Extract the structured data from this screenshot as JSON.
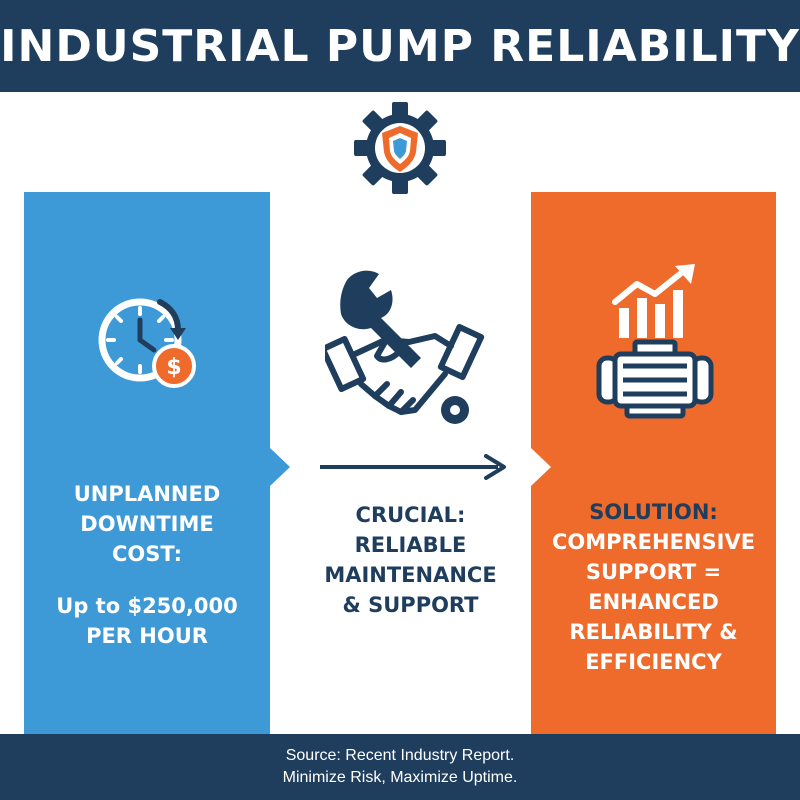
{
  "header": {
    "title": "INDUSTRIAL PUMP RELIABILITY"
  },
  "colors": {
    "navy": "#1f3d5c",
    "blue": "#3d9ad6",
    "orange": "#ee6b2c",
    "white": "#ffffff"
  },
  "icons": {
    "top": "gear-shield-icon",
    "left": "clock-dollar-icon",
    "middle": "wrench-handshake-icon",
    "right": [
      "bar-chart-up-icon",
      "pump-icon"
    ],
    "flow": "right-arrow-icon"
  },
  "left_panel": {
    "heading_lines": [
      "UNPLANNED",
      "DOWNTIME",
      "COST:"
    ],
    "value_lines": [
      "Up to $250,000",
      "PER HOUR"
    ]
  },
  "middle": {
    "lines": [
      "CRUCIAL:",
      "RELIABLE",
      "MAINTENANCE",
      "& SUPPORT"
    ]
  },
  "right_panel": {
    "lines": [
      "SOLUTION:",
      "COMPREHENSIVE",
      "SUPPORT =",
      "ENHANCED",
      "RELIABILITY &",
      "EFFICIENCY"
    ]
  },
  "footer": {
    "line1": "Source: Recent Industry Report.",
    "line2": "Minimize Risk, Maximize Uptime."
  }
}
